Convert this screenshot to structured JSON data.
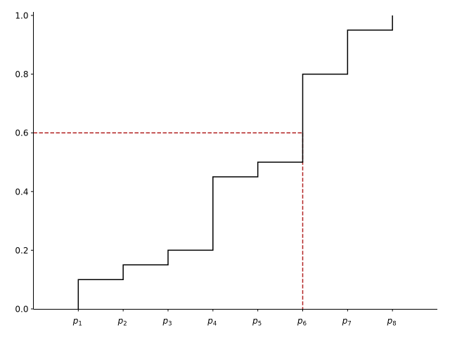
{
  "chart_data": {
    "type": "line",
    "subtype": "step",
    "x_categories": [
      {
        "base": "p",
        "sub": "1"
      },
      {
        "base": "p",
        "sub": "2"
      },
      {
        "base": "p",
        "sub": "3"
      },
      {
        "base": "p",
        "sub": "4"
      },
      {
        "base": "p",
        "sub": "5"
      },
      {
        "base": "p",
        "sub": "6"
      },
      {
        "base": "p",
        "sub": "7"
      },
      {
        "base": "p",
        "sub": "8"
      }
    ],
    "x": [
      1,
      2,
      3,
      4,
      5,
      6,
      7,
      8
    ],
    "cumulative_values": [
      0.1,
      0.15,
      0.2,
      0.45,
      0.5,
      0.8,
      0.95,
      1.0
    ],
    "xlim": [
      0,
      9
    ],
    "ylim": [
      0,
      1.0
    ],
    "yticks": [
      "0.0",
      "0.2",
      "0.4",
      "0.6",
      "0.8",
      "1.0"
    ],
    "line_color": "#000000",
    "reference_line": {
      "y": 0.6,
      "x": 6,
      "color": "#b22222",
      "style": "dashed"
    },
    "grid": false,
    "spines": [
      "left",
      "bottom"
    ],
    "title": "",
    "xlabel": "",
    "ylabel": ""
  }
}
